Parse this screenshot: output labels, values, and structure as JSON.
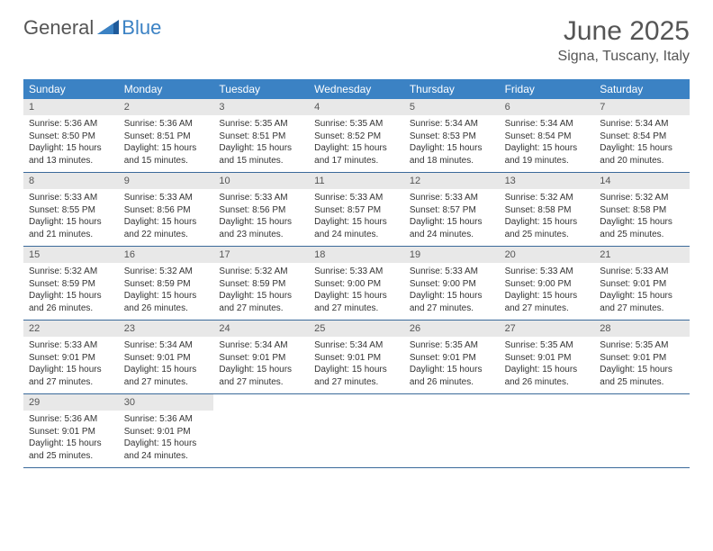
{
  "logo": {
    "text1": "General",
    "text2": "Blue"
  },
  "title": "June 2025",
  "location": "Signa, Tuscany, Italy",
  "colors": {
    "header_bg": "#3b82c4",
    "header_text": "#ffffff",
    "daynum_bg": "#e8e8e8",
    "border": "#3b6a9a",
    "title_color": "#555555",
    "logo_blue": "#3b82c4",
    "logo_gray": "#555555"
  },
  "weekdays": [
    "Sunday",
    "Monday",
    "Tuesday",
    "Wednesday",
    "Thursday",
    "Friday",
    "Saturday"
  ],
  "weeks": [
    [
      {
        "num": "1",
        "sunrise": "5:36 AM",
        "sunset": "8:50 PM",
        "daylight": "15 hours and 13 minutes."
      },
      {
        "num": "2",
        "sunrise": "5:36 AM",
        "sunset": "8:51 PM",
        "daylight": "15 hours and 15 minutes."
      },
      {
        "num": "3",
        "sunrise": "5:35 AM",
        "sunset": "8:51 PM",
        "daylight": "15 hours and 15 minutes."
      },
      {
        "num": "4",
        "sunrise": "5:35 AM",
        "sunset": "8:52 PM",
        "daylight": "15 hours and 17 minutes."
      },
      {
        "num": "5",
        "sunrise": "5:34 AM",
        "sunset": "8:53 PM",
        "daylight": "15 hours and 18 minutes."
      },
      {
        "num": "6",
        "sunrise": "5:34 AM",
        "sunset": "8:54 PM",
        "daylight": "15 hours and 19 minutes."
      },
      {
        "num": "7",
        "sunrise": "5:34 AM",
        "sunset": "8:54 PM",
        "daylight": "15 hours and 20 minutes."
      }
    ],
    [
      {
        "num": "8",
        "sunrise": "5:33 AM",
        "sunset": "8:55 PM",
        "daylight": "15 hours and 21 minutes."
      },
      {
        "num": "9",
        "sunrise": "5:33 AM",
        "sunset": "8:56 PM",
        "daylight": "15 hours and 22 minutes."
      },
      {
        "num": "10",
        "sunrise": "5:33 AM",
        "sunset": "8:56 PM",
        "daylight": "15 hours and 23 minutes."
      },
      {
        "num": "11",
        "sunrise": "5:33 AM",
        "sunset": "8:57 PM",
        "daylight": "15 hours and 24 minutes."
      },
      {
        "num": "12",
        "sunrise": "5:33 AM",
        "sunset": "8:57 PM",
        "daylight": "15 hours and 24 minutes."
      },
      {
        "num": "13",
        "sunrise": "5:32 AM",
        "sunset": "8:58 PM",
        "daylight": "15 hours and 25 minutes."
      },
      {
        "num": "14",
        "sunrise": "5:32 AM",
        "sunset": "8:58 PM",
        "daylight": "15 hours and 25 minutes."
      }
    ],
    [
      {
        "num": "15",
        "sunrise": "5:32 AM",
        "sunset": "8:59 PM",
        "daylight": "15 hours and 26 minutes."
      },
      {
        "num": "16",
        "sunrise": "5:32 AM",
        "sunset": "8:59 PM",
        "daylight": "15 hours and 26 minutes."
      },
      {
        "num": "17",
        "sunrise": "5:32 AM",
        "sunset": "8:59 PM",
        "daylight": "15 hours and 27 minutes."
      },
      {
        "num": "18",
        "sunrise": "5:33 AM",
        "sunset": "9:00 PM",
        "daylight": "15 hours and 27 minutes."
      },
      {
        "num": "19",
        "sunrise": "5:33 AM",
        "sunset": "9:00 PM",
        "daylight": "15 hours and 27 minutes."
      },
      {
        "num": "20",
        "sunrise": "5:33 AM",
        "sunset": "9:00 PM",
        "daylight": "15 hours and 27 minutes."
      },
      {
        "num": "21",
        "sunrise": "5:33 AM",
        "sunset": "9:01 PM",
        "daylight": "15 hours and 27 minutes."
      }
    ],
    [
      {
        "num": "22",
        "sunrise": "5:33 AM",
        "sunset": "9:01 PM",
        "daylight": "15 hours and 27 minutes."
      },
      {
        "num": "23",
        "sunrise": "5:34 AM",
        "sunset": "9:01 PM",
        "daylight": "15 hours and 27 minutes."
      },
      {
        "num": "24",
        "sunrise": "5:34 AM",
        "sunset": "9:01 PM",
        "daylight": "15 hours and 27 minutes."
      },
      {
        "num": "25",
        "sunrise": "5:34 AM",
        "sunset": "9:01 PM",
        "daylight": "15 hours and 27 minutes."
      },
      {
        "num": "26",
        "sunrise": "5:35 AM",
        "sunset": "9:01 PM",
        "daylight": "15 hours and 26 minutes."
      },
      {
        "num": "27",
        "sunrise": "5:35 AM",
        "sunset": "9:01 PM",
        "daylight": "15 hours and 26 minutes."
      },
      {
        "num": "28",
        "sunrise": "5:35 AM",
        "sunset": "9:01 PM",
        "daylight": "15 hours and 25 minutes."
      }
    ],
    [
      {
        "num": "29",
        "sunrise": "5:36 AM",
        "sunset": "9:01 PM",
        "daylight": "15 hours and 25 minutes."
      },
      {
        "num": "30",
        "sunrise": "5:36 AM",
        "sunset": "9:01 PM",
        "daylight": "15 hours and 24 minutes."
      },
      null,
      null,
      null,
      null,
      null
    ]
  ],
  "labels": {
    "sunrise_prefix": "Sunrise: ",
    "sunset_prefix": "Sunset: ",
    "daylight_prefix": "Daylight: "
  }
}
